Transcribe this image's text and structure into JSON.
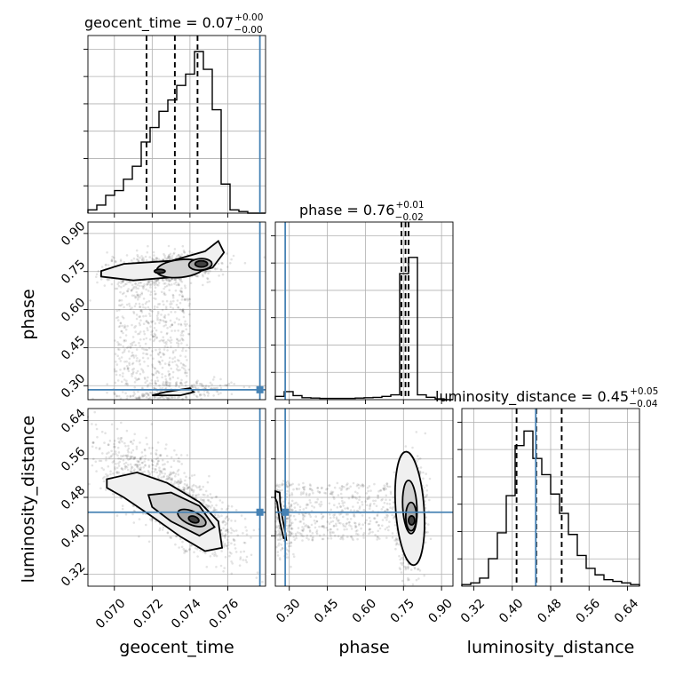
{
  "chart_data": {
    "type": "corner",
    "grid": true,
    "truth_color": "#4682b4",
    "parameters": [
      {
        "name": "geocent_time",
        "label": "geocent_time",
        "range": [
          0.0686,
          0.078
        ],
        "ticks": [
          0.07,
          0.072,
          0.074,
          0.076
        ],
        "tick_labels": [
          "0.070",
          "0.072",
          "0.074",
          "0.076"
        ],
        "truth": 0.0777
      },
      {
        "name": "phase",
        "label": "phase",
        "range": [
          0.245,
          0.945
        ],
        "ticks": [
          0.3,
          0.45,
          0.6,
          0.75,
          0.9
        ],
        "tick_labels": [
          "0.30",
          "0.45",
          "0.60",
          "0.75",
          "0.90"
        ],
        "truth": 0.284
      },
      {
        "name": "luminosity_distance",
        "label": "luminosity_distance",
        "range": [
          0.295,
          0.665
        ],
        "ticks": [
          0.32,
          0.4,
          0.48,
          0.56,
          0.64
        ],
        "tick_labels": [
          "0.32",
          "0.40",
          "0.48",
          "0.56",
          "0.64"
        ],
        "truth": 0.449
      }
    ],
    "titles": [
      {
        "main": "geocent_time = 0.07",
        "sup": "+0.00",
        "sub": "−0.00"
      },
      {
        "main": "phase = 0.76",
        "sup": "+0.01",
        "sub": "−0.02"
      },
      {
        "main": "luminosity_distance = 0.45",
        "sup": "+0.05",
        "sub": "−0.04"
      }
    ],
    "histograms": [
      {
        "edges": [
          0.0686,
          0.06907,
          0.06954,
          0.07001,
          0.07048,
          0.07095,
          0.07142,
          0.07189,
          0.07236,
          0.07283,
          0.0733,
          0.07377,
          0.07424,
          0.07471,
          0.07518,
          0.07565,
          0.07612,
          0.07659,
          0.07706,
          0.07753,
          0.078
        ],
        "counts": [
          0.02,
          0.05,
          0.11,
          0.14,
          0.21,
          0.29,
          0.44,
          0.53,
          0.63,
          0.7,
          0.79,
          0.86,
          1.0,
          0.89,
          0.64,
          0.18,
          0.02,
          0.01,
          0.0,
          0.0
        ],
        "quantiles": [
          0.0717,
          0.0732,
          0.0744
        ]
      },
      {
        "edges": [
          0.245,
          0.28,
          0.315,
          0.35,
          0.385,
          0.42,
          0.455,
          0.49,
          0.525,
          0.56,
          0.595,
          0.63,
          0.665,
          0.7,
          0.735,
          0.77,
          0.805,
          0.84,
          0.875,
          0.91,
          0.945
        ],
        "counts": [
          0.02,
          0.05,
          0.025,
          0.012,
          0.01,
          0.008,
          0.008,
          0.008,
          0.008,
          0.01,
          0.012,
          0.014,
          0.02,
          0.03,
          0.78,
          0.88,
          0.03,
          0.015,
          0.005,
          0.0
        ],
        "quantiles": [
          0.742,
          0.758,
          0.77
        ]
      },
      {
        "edges": [
          0.295,
          0.3135,
          0.332,
          0.3505,
          0.369,
          0.3875,
          0.406,
          0.4245,
          0.443,
          0.4615,
          0.48,
          0.4985,
          0.517,
          0.5355,
          0.554,
          0.5725,
          0.591,
          0.6095,
          0.628,
          0.6465,
          0.665
        ],
        "counts": [
          0.01,
          0.02,
          0.05,
          0.17,
          0.33,
          0.56,
          0.87,
          0.96,
          0.79,
          0.69,
          0.57,
          0.45,
          0.32,
          0.19,
          0.11,
          0.07,
          0.04,
          0.03,
          0.02,
          0.01
        ],
        "quantiles": [
          0.409,
          0.45,
          0.503
        ]
      }
    ]
  }
}
